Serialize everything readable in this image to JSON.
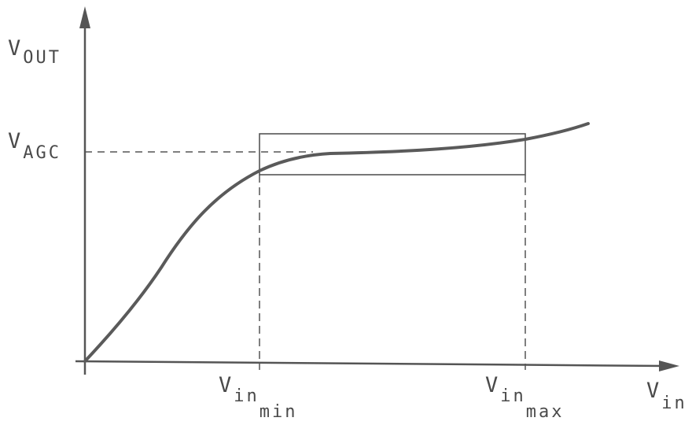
{
  "diagram": {
    "y_axis_label": {
      "main": "V",
      "sub": "OUT"
    },
    "x_axis_label": {
      "main": "V",
      "sub": "in"
    },
    "agc_label": {
      "main": "V",
      "sub": "AGC"
    },
    "vin_min_label": {
      "main": "V",
      "sub": "in",
      "subsub": "min"
    },
    "vin_max_label": {
      "main": "V",
      "sub": "in",
      "subsub": "max"
    }
  }
}
